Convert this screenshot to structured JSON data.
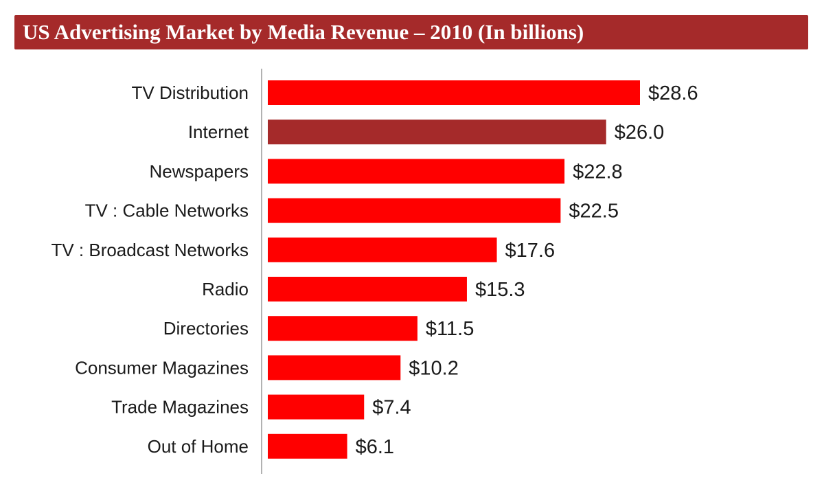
{
  "title": "US Advertising Market by Media Revenue – 2010 (In billions)",
  "colors": {
    "title_bar": "#a52a2a",
    "bar_default": "#ff0000",
    "bar_highlight": "#a52a2a",
    "axis": "#999999"
  },
  "chart_data": {
    "type": "bar",
    "orientation": "horizontal",
    "title": "US Advertising Market by Media Revenue – 2010 (In billions)",
    "categories": [
      "TV Distribution",
      "Internet",
      "Newspapers",
      "TV : Cable Networks",
      "TV : Broadcast Networks",
      "Radio",
      "Directories",
      "Consumer Magazines",
      "Trade Magazines",
      "Out of Home"
    ],
    "values": [
      28.6,
      26.0,
      22.8,
      22.5,
      17.6,
      15.3,
      11.5,
      10.2,
      7.4,
      6.1
    ],
    "value_labels": [
      "$28.6",
      "$26.0",
      "$22.8",
      "$22.5",
      "$17.6",
      "$15.3",
      "$11.5",
      "$10.2",
      "$7.4",
      "$6.1"
    ],
    "highlight_index": 1,
    "xlim": [
      0,
      28.6
    ],
    "grid": false,
    "legend": "none"
  }
}
